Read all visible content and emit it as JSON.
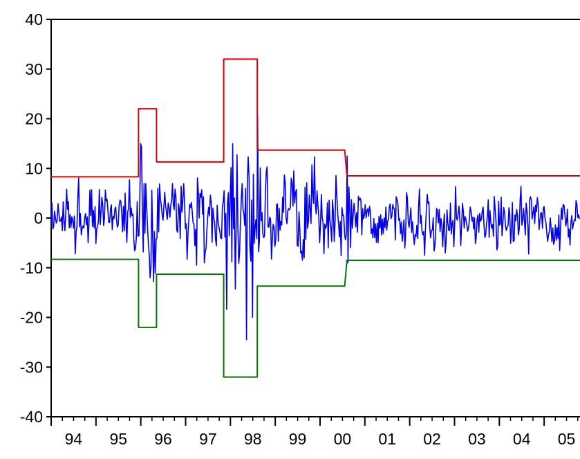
{
  "chart_data": {
    "type": "line",
    "title": "",
    "xlabel": "",
    "ylabel": "",
    "xlim": [
      1994.0,
      2005.8
    ],
    "ylim": [
      -40,
      40
    ],
    "y_ticks": [
      "-40",
      "-30",
      "-20",
      "-10",
      "0",
      "10",
      "20",
      "30",
      "40"
    ],
    "x_ticks": [
      {
        "label": "94",
        "x": 1994.5
      },
      {
        "label": "95",
        "x": 1995.5
      },
      {
        "label": "96",
        "x": 1996.5
      },
      {
        "label": "97",
        "x": 1997.5
      },
      {
        "label": "98",
        "x": 1998.5
      },
      {
        "label": "99",
        "x": 1999.5
      },
      {
        "label": "00",
        "x": 2000.5
      },
      {
        "label": "01",
        "x": 2001.5
      },
      {
        "label": "02",
        "x": 2002.5
      },
      {
        "label": "03",
        "x": 2003.5
      },
      {
        "label": "04",
        "x": 2004.5
      },
      {
        "label": "05",
        "x": 2005.5
      }
    ],
    "grid": false,
    "legend": "none",
    "colors": {
      "series": "#0000ee",
      "upper": "#dd0000",
      "lower": "#007700"
    },
    "series": [
      {
        "color": "#0000ee",
        "generated": {
          "start": 1994.0,
          "end": 2005.8,
          "step": 0.0192,
          "seed": 20240517,
          "regimes": [
            {
              "from": 1994.0,
              "to": 1995.95,
              "scale": 3.0
            },
            {
              "from": 1995.95,
              "to": 1996.35,
              "scale": 5.5
            },
            {
              "from": 1996.35,
              "to": 1997.85,
              "scale": 3.9
            },
            {
              "from": 1997.85,
              "to": 1998.6,
              "scale": 8.0
            },
            {
              "from": 1998.6,
              "to": 2000.55,
              "scale": 4.6
            },
            {
              "from": 2000.55,
              "to": 2005.8,
              "scale": 2.9
            }
          ],
          "anchors": [
            {
              "x": 1996.0,
              "y": 15.0
            },
            {
              "x": 1996.2,
              "y": -12.0
            },
            {
              "x": 1998.05,
              "y": 15.0
            },
            {
              "x": 1998.35,
              "y": -24.5
            },
            {
              "x": 1998.5,
              "y": -20.0
            },
            {
              "x": 1998.6,
              "y": 20.5
            },
            {
              "x": 2000.6,
              "y": 12.5
            },
            {
              "x": 2000.62,
              "y": -9.0
            }
          ]
        }
      },
      {
        "color": "#dd0000",
        "step_points": [
          [
            1994.0,
            8.3
          ],
          [
            1995.95,
            8.3
          ],
          [
            1995.95,
            22.0
          ],
          [
            1996.35,
            22.0
          ],
          [
            1996.35,
            11.3
          ],
          [
            1997.85,
            11.3
          ],
          [
            1997.85,
            32.0
          ],
          [
            1998.6,
            32.0
          ],
          [
            1998.6,
            13.7
          ],
          [
            2000.55,
            13.7
          ],
          [
            2000.6,
            8.5
          ],
          [
            2005.8,
            8.5
          ]
        ]
      },
      {
        "color": "#007700",
        "step_points": [
          [
            1994.0,
            -8.3
          ],
          [
            1995.95,
            -8.3
          ],
          [
            1995.95,
            -22.0
          ],
          [
            1996.35,
            -22.0
          ],
          [
            1996.35,
            -11.3
          ],
          [
            1997.85,
            -11.3
          ],
          [
            1997.85,
            -32.0
          ],
          [
            1998.6,
            -32.0
          ],
          [
            1998.6,
            -13.7
          ],
          [
            2000.55,
            -13.7
          ],
          [
            2000.6,
            -8.5
          ],
          [
            2005.8,
            -8.5
          ]
        ]
      }
    ]
  }
}
